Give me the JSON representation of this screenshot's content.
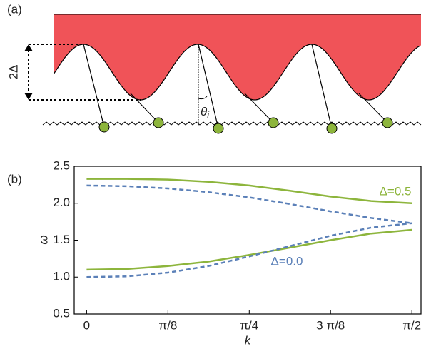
{
  "panel_a": {
    "label": "(a)",
    "gap_label": "2Δ",
    "angle_label": "θ",
    "angle_sub": "i"
  },
  "chart_data": {
    "type": "line",
    "panel_label": "(b)",
    "xlabel": "k",
    "ylabel": "ω",
    "x": [
      0,
      0.19635,
      0.3927,
      0.58905,
      0.7854,
      0.98175,
      1.1781,
      1.37445,
      1.5708
    ],
    "xlim": [
      -0.06,
      1.615
    ],
    "xticks": [
      0,
      {
        "value": 0.3927,
        "label": "π/8"
      },
      {
        "value": 0.7854,
        "label": "π/4"
      },
      {
        "value": 1.1781,
        "label": "3 π/8"
      },
      {
        "value": 1.5708,
        "label": "π/2"
      }
    ],
    "ylim": [
      0.5,
      2.5
    ],
    "yticks": [
      0.5,
      {
        "value": 1,
        "label": "1.0"
      },
      1.5,
      {
        "value": 2,
        "label": "2.0"
      },
      2.5
    ],
    "series": [
      {
        "name": "Δ=0.5",
        "color": "#8db53c",
        "dashed": false,
        "branches": [
          [
            2.33,
            2.33,
            2.32,
            2.29,
            2.24,
            2.17,
            2.09,
            2.03,
            2.0
          ],
          [
            1.1,
            1.11,
            1.15,
            1.21,
            1.3,
            1.4,
            1.5,
            1.59,
            1.64
          ]
        ]
      },
      {
        "name": "Δ=0.0",
        "color": "#5b80b8",
        "dashed": true,
        "branches": [
          [
            2.24,
            2.23,
            2.2,
            2.15,
            2.08,
            1.99,
            1.89,
            1.8,
            1.73
          ],
          [
            1.0,
            1.01,
            1.06,
            1.15,
            1.28,
            1.42,
            1.56,
            1.67,
            1.73
          ]
        ]
      }
    ]
  }
}
